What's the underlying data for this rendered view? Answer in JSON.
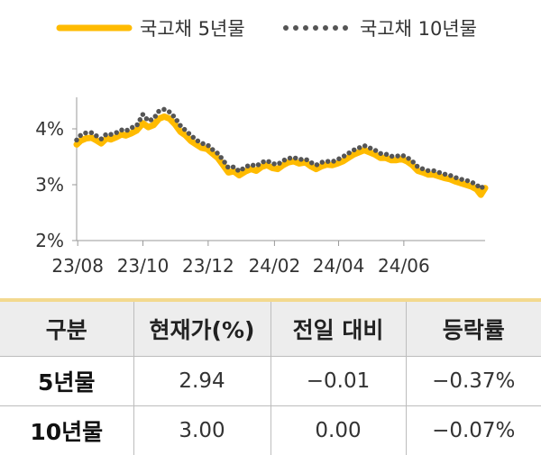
{
  "chart_data": {
    "type": "line",
    "title": "",
    "xlabel": "",
    "ylabel": "",
    "ylim": [
      2,
      4.5
    ],
    "y_ticks": [
      2,
      3,
      4
    ],
    "y_tick_labels": [
      "2%",
      "3%",
      "4%"
    ],
    "x_ticks": [
      "23/08",
      "23/10",
      "23/12",
      "24/02",
      "24/04",
      "24/06"
    ],
    "x_range": [
      "2023-07-31",
      "2024-08-16"
    ],
    "grid": false,
    "legend_position": "top",
    "series": [
      {
        "name": "국고채 5년물",
        "style": "solid",
        "color": "#ffbb00",
        "points": [
          [
            "2023-07-31",
            3.72
          ],
          [
            "2023-08-04",
            3.79
          ],
          [
            "2023-08-09",
            3.83
          ],
          [
            "2023-08-14",
            3.84
          ],
          [
            "2023-08-18",
            3.8
          ],
          [
            "2023-08-23",
            3.74
          ],
          [
            "2023-08-28",
            3.83
          ],
          [
            "2023-09-01",
            3.81
          ],
          [
            "2023-09-06",
            3.85
          ],
          [
            "2023-09-11",
            3.9
          ],
          [
            "2023-09-15",
            3.88
          ],
          [
            "2023-09-20",
            3.92
          ],
          [
            "2023-09-25",
            3.97
          ],
          [
            "2023-10-01",
            4.1
          ],
          [
            "2023-10-06",
            4.03
          ],
          [
            "2023-10-11",
            4.07
          ],
          [
            "2023-10-16",
            4.18
          ],
          [
            "2023-10-21",
            4.22
          ],
          [
            "2023-10-26",
            4.18
          ],
          [
            "2023-10-31",
            4.08
          ],
          [
            "2023-11-05",
            3.95
          ],
          [
            "2023-11-10",
            3.88
          ],
          [
            "2023-11-15",
            3.78
          ],
          [
            "2023-11-20",
            3.72
          ],
          [
            "2023-11-25",
            3.66
          ],
          [
            "2023-11-30",
            3.64
          ],
          [
            "2023-12-05",
            3.56
          ],
          [
            "2023-12-10",
            3.48
          ],
          [
            "2023-12-15",
            3.35
          ],
          [
            "2023-12-20",
            3.22
          ],
          [
            "2023-12-25",
            3.24
          ],
          [
            "2023-12-30",
            3.17
          ],
          [
            "2024-01-05",
            3.24
          ],
          [
            "2024-01-10",
            3.28
          ],
          [
            "2024-01-15",
            3.25
          ],
          [
            "2024-01-20",
            3.32
          ],
          [
            "2024-01-25",
            3.35
          ],
          [
            "2024-01-30",
            3.3
          ],
          [
            "2024-02-04",
            3.28
          ],
          [
            "2024-02-09",
            3.35
          ],
          [
            "2024-02-14",
            3.4
          ],
          [
            "2024-02-19",
            3.42
          ],
          [
            "2024-02-24",
            3.38
          ],
          [
            "2024-03-01",
            3.4
          ],
          [
            "2024-03-06",
            3.33
          ],
          [
            "2024-03-11",
            3.28
          ],
          [
            "2024-03-16",
            3.33
          ],
          [
            "2024-03-21",
            3.36
          ],
          [
            "2024-03-26",
            3.35
          ],
          [
            "2024-03-31",
            3.38
          ],
          [
            "2024-04-05",
            3.42
          ],
          [
            "2024-04-10",
            3.48
          ],
          [
            "2024-04-15",
            3.54
          ],
          [
            "2024-04-20",
            3.58
          ],
          [
            "2024-04-25",
            3.62
          ],
          [
            "2024-04-30",
            3.58
          ],
          [
            "2024-05-05",
            3.54
          ],
          [
            "2024-05-10",
            3.48
          ],
          [
            "2024-05-15",
            3.48
          ],
          [
            "2024-05-20",
            3.44
          ],
          [
            "2024-05-25",
            3.44
          ],
          [
            "2024-05-30",
            3.46
          ],
          [
            "2024-06-04",
            3.42
          ],
          [
            "2024-06-09",
            3.35
          ],
          [
            "2024-06-14",
            3.25
          ],
          [
            "2024-06-19",
            3.22
          ],
          [
            "2024-06-24",
            3.18
          ],
          [
            "2024-06-29",
            3.18
          ],
          [
            "2024-07-04",
            3.15
          ],
          [
            "2024-07-09",
            3.12
          ],
          [
            "2024-07-14",
            3.1
          ],
          [
            "2024-07-19",
            3.06
          ],
          [
            "2024-07-24",
            3.03
          ],
          [
            "2024-07-29",
            3.0
          ],
          [
            "2024-08-03",
            2.97
          ],
          [
            "2024-08-08",
            2.92
          ],
          [
            "2024-08-12",
            2.82
          ],
          [
            "2024-08-16",
            2.94
          ]
        ]
      },
      {
        "name": "국고채 10년물",
        "style": "dotted",
        "color": "#555555",
        "points": [
          [
            "2023-07-31",
            3.8
          ],
          [
            "2023-08-04",
            3.89
          ],
          [
            "2023-08-09",
            3.93
          ],
          [
            "2023-08-14",
            3.93
          ],
          [
            "2023-08-18",
            3.88
          ],
          [
            "2023-08-23",
            3.82
          ],
          [
            "2023-08-28",
            3.91
          ],
          [
            "2023-09-01",
            3.9
          ],
          [
            "2023-09-06",
            3.93
          ],
          [
            "2023-09-11",
            3.98
          ],
          [
            "2023-09-15",
            3.96
          ],
          [
            "2023-09-20",
            4.02
          ],
          [
            "2023-09-25",
            4.05
          ],
          [
            "2023-10-01",
            4.26
          ],
          [
            "2023-10-06",
            4.14
          ],
          [
            "2023-10-11",
            4.18
          ],
          [
            "2023-10-16",
            4.32
          ],
          [
            "2023-10-21",
            4.35
          ],
          [
            "2023-10-26",
            4.3
          ],
          [
            "2023-10-31",
            4.2
          ],
          [
            "2023-11-05",
            4.06
          ],
          [
            "2023-11-10",
            3.97
          ],
          [
            "2023-11-15",
            3.88
          ],
          [
            "2023-11-20",
            3.8
          ],
          [
            "2023-11-25",
            3.74
          ],
          [
            "2023-11-30",
            3.72
          ],
          [
            "2023-12-05",
            3.63
          ],
          [
            "2023-12-10",
            3.56
          ],
          [
            "2023-12-15",
            3.44
          ],
          [
            "2023-12-20",
            3.3
          ],
          [
            "2023-12-25",
            3.32
          ],
          [
            "2023-12-30",
            3.24
          ],
          [
            "2024-01-05",
            3.32
          ],
          [
            "2024-01-10",
            3.36
          ],
          [
            "2024-01-15",
            3.33
          ],
          [
            "2024-01-20",
            3.4
          ],
          [
            "2024-01-25",
            3.43
          ],
          [
            "2024-01-30",
            3.38
          ],
          [
            "2024-02-04",
            3.36
          ],
          [
            "2024-02-09",
            3.43
          ],
          [
            "2024-02-14",
            3.47
          ],
          [
            "2024-02-19",
            3.49
          ],
          [
            "2024-02-24",
            3.45
          ],
          [
            "2024-03-01",
            3.46
          ],
          [
            "2024-03-06",
            3.4
          ],
          [
            "2024-03-11",
            3.35
          ],
          [
            "2024-03-16",
            3.4
          ],
          [
            "2024-03-21",
            3.42
          ],
          [
            "2024-03-26",
            3.41
          ],
          [
            "2024-03-31",
            3.45
          ],
          [
            "2024-04-05",
            3.5
          ],
          [
            "2024-04-10",
            3.56
          ],
          [
            "2024-04-15",
            3.62
          ],
          [
            "2024-04-20",
            3.66
          ],
          [
            "2024-04-25",
            3.7
          ],
          [
            "2024-04-30",
            3.66
          ],
          [
            "2024-05-05",
            3.62
          ],
          [
            "2024-05-10",
            3.56
          ],
          [
            "2024-05-15",
            3.55
          ],
          [
            "2024-05-20",
            3.51
          ],
          [
            "2024-05-25",
            3.51
          ],
          [
            "2024-05-30",
            3.53
          ],
          [
            "2024-06-04",
            3.49
          ],
          [
            "2024-06-09",
            3.42
          ],
          [
            "2024-06-14",
            3.32
          ],
          [
            "2024-06-19",
            3.28
          ],
          [
            "2024-06-24",
            3.25
          ],
          [
            "2024-06-29",
            3.25
          ],
          [
            "2024-07-04",
            3.22
          ],
          [
            "2024-07-09",
            3.19
          ],
          [
            "2024-07-14",
            3.17
          ],
          [
            "2024-07-19",
            3.13
          ],
          [
            "2024-07-24",
            3.1
          ],
          [
            "2024-07-29",
            3.08
          ],
          [
            "2024-08-03",
            3.05
          ],
          [
            "2024-08-08",
            3.0
          ],
          [
            "2024-08-12",
            2.93
          ],
          [
            "2024-08-16",
            3.0
          ]
        ]
      }
    ]
  },
  "table": {
    "headers": [
      "구분",
      "현재가(%)",
      "전일 대비",
      "등락률"
    ],
    "rows": [
      [
        "5년물",
        "2.94",
        "−0.01",
        "−0.37%"
      ],
      [
        "10년물",
        "3.00",
        "0.00",
        "−0.07%"
      ]
    ]
  }
}
